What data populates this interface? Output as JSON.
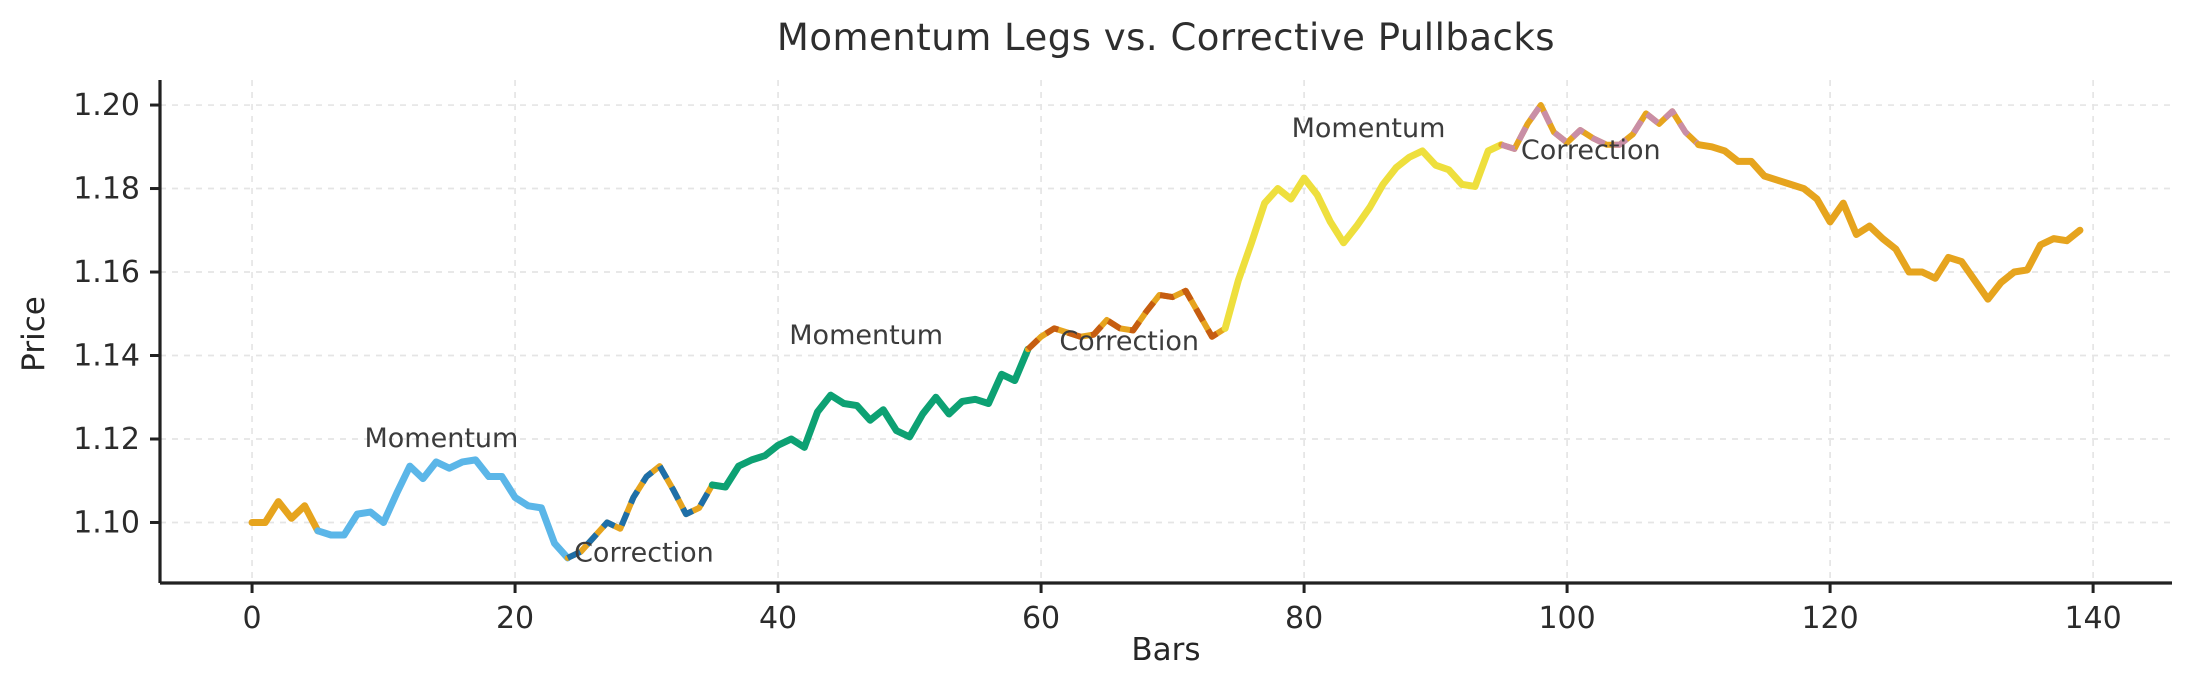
{
  "chart_data": {
    "type": "line",
    "title": "Momentum Legs vs. Corrective Pullbacks",
    "xlabel": "Bars",
    "ylabel": "Price",
    "xlim": [
      -7,
      146
    ],
    "ylim": [
      1.0855,
      1.206
    ],
    "xticks": [
      0,
      20,
      40,
      60,
      80,
      100,
      120,
      140
    ],
    "yticks": [
      1.1,
      1.12,
      1.14,
      1.16,
      1.18,
      1.2
    ],
    "ytick_labels": [
      "1.10",
      "1.12",
      "1.14",
      "1.16",
      "1.18",
      "1.20"
    ],
    "grid": true,
    "legend_position": "none",
    "colors": {
      "base_orange": "#E6A41E",
      "momentum_blue": "#5BB6E8",
      "correction_steelblue": "#1E6FA8",
      "momentum_green": "#0DA173",
      "correction_chocolate": "#C65D11",
      "momentum_yellow": "#EEDF3D",
      "correction_rose": "#C98EA6",
      "grid": "#E5E5E5",
      "spine": "#212121",
      "tick_text": "#2B2B2B",
      "annotation_text": "#3C3C3C"
    },
    "values": [
      1.1,
      1.1,
      1.105,
      1.101,
      1.104,
      1.098,
      1.097,
      1.097,
      1.102,
      1.1025,
      1.1,
      1.107,
      1.1135,
      1.1105,
      1.1145,
      1.113,
      1.1145,
      1.115,
      1.111,
      1.111,
      1.106,
      1.104,
      1.1035,
      1.095,
      1.0915,
      1.093,
      1.0965,
      1.1,
      1.0985,
      1.106,
      1.111,
      1.1135,
      1.108,
      1.102,
      1.1035,
      1.109,
      1.1085,
      1.1135,
      1.115,
      1.116,
      1.1185,
      1.12,
      1.118,
      1.1265,
      1.1305,
      1.1285,
      1.128,
      1.1245,
      1.127,
      1.122,
      1.1205,
      1.126,
      1.13,
      1.126,
      1.129,
      1.1295,
      1.1285,
      1.1355,
      1.134,
      1.1415,
      1.1445,
      1.1465,
      1.1455,
      1.1445,
      1.145,
      1.1485,
      1.1465,
      1.146,
      1.1505,
      1.1545,
      1.154,
      1.1555,
      1.15,
      1.1445,
      1.1465,
      1.158,
      1.167,
      1.1765,
      1.18,
      1.1775,
      1.1825,
      1.1785,
      1.172,
      1.167,
      1.171,
      1.1755,
      1.181,
      1.185,
      1.1875,
      1.189,
      1.1856,
      1.1845,
      1.181,
      1.1805,
      1.189,
      1.1905,
      1.1895,
      1.1955,
      1.2,
      1.1935,
      1.191,
      1.194,
      1.192,
      1.1905,
      1.1905,
      1.193,
      1.198,
      1.1955,
      1.1985,
      1.1935,
      1.1905,
      1.19,
      1.189,
      1.1865,
      1.1865,
      1.183,
      1.182,
      1.181,
      1.18,
      1.1775,
      1.172,
      1.1765,
      1.169,
      1.171,
      1.168,
      1.1655,
      1.16,
      1.16,
      1.1585,
      1.1635,
      1.1625,
      1.158,
      1.1535,
      1.1575,
      1.16,
      1.1605,
      1.1665,
      1.168,
      1.1675,
      1.17
    ],
    "segments": [
      {
        "name": "base-start",
        "label": "",
        "style": "solid",
        "color": "#E6A41E",
        "start": 0,
        "end": 5
      },
      {
        "name": "momentum-1",
        "label": "Momentum",
        "style": "solid",
        "color": "#5BB6E8",
        "start": 5,
        "end": 24
      },
      {
        "name": "correction-1",
        "label": "Correction",
        "style": "dashed",
        "color": "#1E6FA8",
        "base_color": "#E6A41E",
        "start": 24,
        "end": 35
      },
      {
        "name": "momentum-2",
        "label": "Momentum",
        "style": "solid",
        "color": "#0DA173",
        "start": 35,
        "end": 59
      },
      {
        "name": "correction-2",
        "label": "Correction",
        "style": "dashed",
        "color": "#C65D11",
        "base_color": "#E6A41E",
        "start": 59,
        "end": 74
      },
      {
        "name": "momentum-3",
        "label": "Momentum",
        "style": "solid",
        "color": "#EEDF3D",
        "start": 74,
        "end": 95
      },
      {
        "name": "correction-3",
        "label": "Correction",
        "style": "dashed",
        "color": "#C98EA6",
        "base_color": "#E6A41E",
        "start": 95,
        "end": 110
      },
      {
        "name": "base-end",
        "label": "",
        "style": "solid",
        "color": "#E6A41E",
        "start": 110,
        "end": 139
      }
    ],
    "annotations": [
      {
        "text": "Momentum",
        "x": 14.4,
        "y": 1.1202
      },
      {
        "text": "Correction",
        "x": 29.8,
        "y": 1.0928
      },
      {
        "text": "Momentum",
        "x": 46.7,
        "y": 1.1449
      },
      {
        "text": "Correction",
        "x": 66.7,
        "y": 1.1435
      },
      {
        "text": "Momentum",
        "x": 84.9,
        "y": 1.1945
      },
      {
        "text": "Correction",
        "x": 101.8,
        "y": 1.1892
      }
    ]
  }
}
